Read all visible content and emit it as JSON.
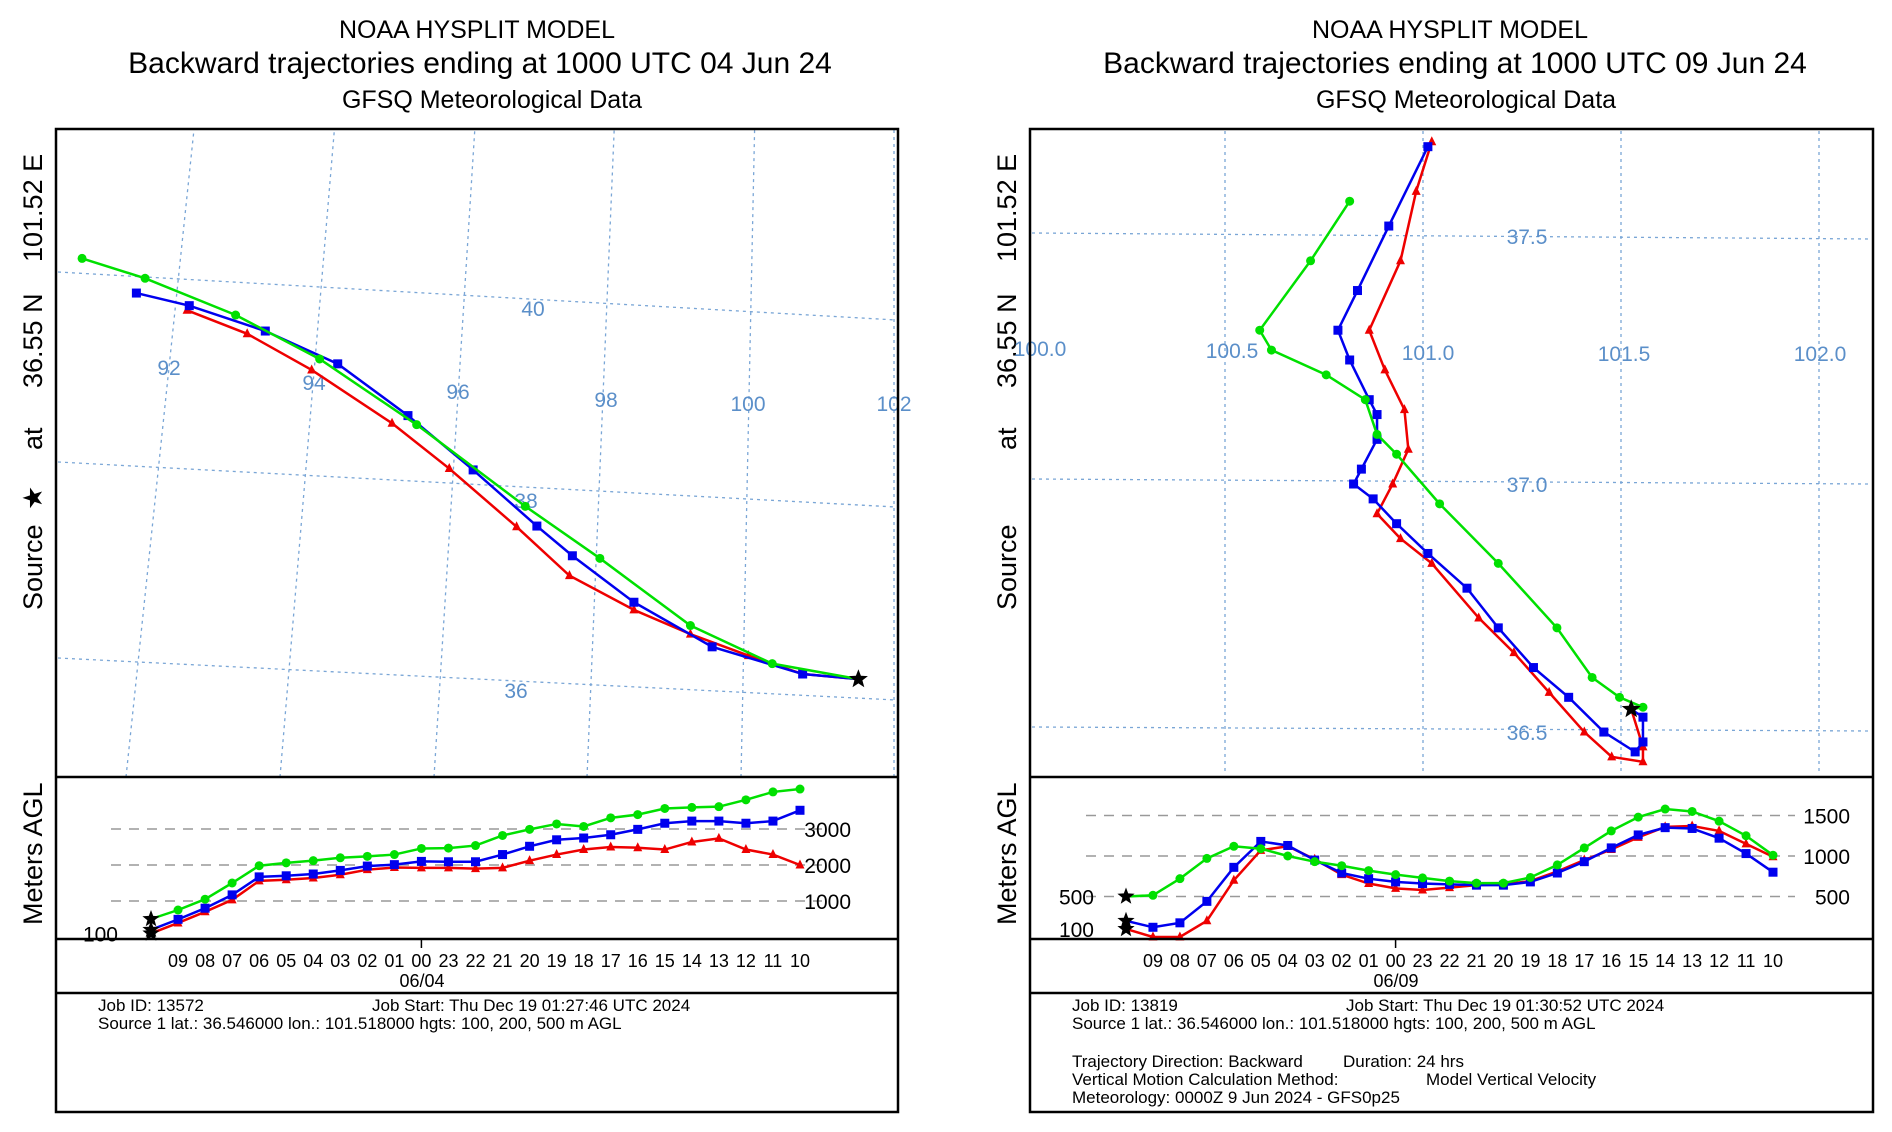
{
  "colors": {
    "green": "#00e000",
    "blue": "#0000ee",
    "red": "#ee0000",
    "grid": "#7aa6d6"
  },
  "side_label": {
    "source": "Source",
    "star": "★",
    "at": "at",
    "lat": "36.55 N",
    "lon": "101.52 E",
    "meters": "Meters AGL"
  },
  "chart_data": [
    {
      "type": "line",
      "title": "NOAA HYSPLIT MODEL",
      "subtitle": "Backward trajectories ending at 1000 UTC 04 Jun 24",
      "subtitle2": "GFSQ Meteorological Data",
      "map": {
        "lon_labels": [
          "92",
          "94",
          "96",
          "98",
          "100",
          "102"
        ],
        "lat_labels": [
          "40",
          "38",
          "36"
        ],
        "source": {
          "lon": 101.52,
          "lat": 36.55
        },
        "series": [
          {
            "name": "500 m",
            "color": "green",
            "marker": "circle",
            "points": [
              [
                90.8,
                40.49
              ],
              [
                91.67,
                40.32
              ],
              [
                92.92,
                39.99
              ],
              [
                94.08,
                39.58
              ],
              [
                95.42,
                38.95
              ],
              [
                96.92,
                38.16
              ],
              [
                97.95,
                37.66
              ],
              [
                99.2,
                37.01
              ],
              [
                100.33,
                36.66
              ],
              [
                101.52,
                36.55
              ]
            ]
          },
          {
            "name": "200 m",
            "color": "blue",
            "marker": "square",
            "points": [
              [
                91.55,
                40.16
              ],
              [
                92.28,
                40.06
              ],
              [
                93.33,
                39.84
              ],
              [
                94.33,
                39.54
              ],
              [
                95.3,
                39.04
              ],
              [
                96.2,
                38.51
              ],
              [
                97.08,
                37.96
              ],
              [
                97.57,
                37.67
              ],
              [
                98.42,
                37.22
              ],
              [
                99.5,
                36.8
              ],
              [
                100.75,
                36.57
              ],
              [
                101.52,
                36.55
              ]
            ]
          },
          {
            "name": "100 m",
            "color": "red",
            "marker": "triangle",
            "points": [
              [
                92.25,
                40.01
              ],
              [
                93.08,
                39.8
              ],
              [
                93.97,
                39.46
              ],
              [
                95.08,
                38.95
              ],
              [
                95.87,
                38.51
              ],
              [
                96.8,
                37.94
              ],
              [
                97.53,
                37.46
              ],
              [
                98.42,
                37.14
              ],
              [
                99.2,
                36.92
              ],
              [
                100.0,
                36.73
              ],
              [
                100.75,
                36.57
              ],
              [
                101.52,
                36.55
              ]
            ]
          }
        ]
      },
      "height": {
        "ylabel": "Meters AGL",
        "right_ticks": [
          1000,
          2000,
          3000
        ],
        "left_ticks": [
          100
        ],
        "times": [
          "10",
          "09",
          "08",
          "07",
          "06",
          "05",
          "04",
          "03",
          "02",
          "01",
          "00",
          "23",
          "22",
          "21",
          "20",
          "19",
          "18",
          "17",
          "16",
          "15",
          "14",
          "13",
          "12",
          "11",
          "10"
        ],
        "date_label": "06/04",
        "series": [
          {
            "name": "500 m",
            "color": "green",
            "marker": "circle",
            "values": [
              500,
              750,
              1050,
              1500,
              1980,
              2060,
              2120,
              2200,
              2240,
              2290,
              2460,
              2470,
              2540,
              2820,
              2990,
              3140,
              3070,
              3310,
              3400,
              3570,
              3600,
              3620,
              3810,
              4030,
              4110
            ]
          },
          {
            "name": "200 m",
            "color": "blue",
            "marker": "square",
            "values": [
              200,
              490,
              800,
              1170,
              1670,
              1700,
              1750,
              1850,
              1970,
              2010,
              2100,
              2090,
              2090,
              2290,
              2520,
              2700,
              2750,
              2840,
              2990,
              3160,
              3220,
              3220,
              3160,
              3220,
              3520
            ]
          },
          {
            "name": "100 m",
            "color": "red",
            "marker": "triangle",
            "values": [
              100,
              390,
              700,
              1030,
              1560,
              1590,
              1640,
              1730,
              1870,
              1930,
              1920,
              1920,
              1900,
              1920,
              2120,
              2290,
              2430,
              2500,
              2480,
              2430,
              2640,
              2740,
              2430,
              2290,
              2000
            ]
          }
        ]
      },
      "info": {
        "job_id": "Job ID: 13572",
        "job_start": "Job Start: Thu Dec 19 01:27:46 UTC 2024",
        "source_line": "Source 1 lat.: 36.546000  lon.: 101.518000  hgts: 100, 200, 500 m AGL"
      }
    },
    {
      "type": "line",
      "title": "NOAA HYSPLIT MODEL",
      "subtitle": "Backward trajectories ending at 1000 UTC 09 Jun 24",
      "subtitle2": "GFSQ Meteorological Data",
      "map": {
        "lon_labels": [
          "100.0",
          "100.5",
          "101.0",
          "101.5",
          "102.0"
        ],
        "lat_labels": [
          "37.5",
          "37.0",
          "36.5"
        ],
        "source": {
          "lon": 101.52,
          "lat": 36.546
        },
        "series": [
          {
            "name": "500 m",
            "color": "green",
            "marker": "circle",
            "points": [
              [
                100.8,
                37.57
              ],
              [
                100.7,
                37.45
              ],
              [
                100.57,
                37.31
              ],
              [
                100.6,
                37.27
              ],
              [
                100.74,
                37.22
              ],
              [
                100.84,
                37.17
              ],
              [
                100.87,
                37.1
              ],
              [
                100.92,
                37.06
              ],
              [
                101.03,
                36.96
              ],
              [
                101.18,
                36.84
              ],
              [
                101.33,
                36.71
              ],
              [
                101.42,
                36.61
              ],
              [
                101.49,
                36.57
              ],
              [
                101.55,
                36.55
              ],
              [
                101.52,
                36.546
              ]
            ]
          },
          {
            "name": "200 m",
            "color": "blue",
            "marker": "square",
            "points": [
              [
                101.0,
                37.68
              ],
              [
                100.9,
                37.52
              ],
              [
                100.82,
                37.39
              ],
              [
                100.77,
                37.31
              ],
              [
                100.8,
                37.25
              ],
              [
                100.85,
                37.17
              ],
              [
                100.87,
                37.14
              ],
              [
                100.87,
                37.09
              ],
              [
                100.83,
                37.03
              ],
              [
                100.81,
                37.0
              ],
              [
                100.86,
                36.97
              ],
              [
                100.92,
                36.92
              ],
              [
                101.0,
                36.86
              ],
              [
                101.1,
                36.79
              ],
              [
                101.18,
                36.71
              ],
              [
                101.27,
                36.63
              ],
              [
                101.36,
                36.57
              ],
              [
                101.45,
                36.5
              ],
              [
                101.53,
                36.46
              ],
              [
                101.55,
                36.48
              ],
              [
                101.55,
                36.53
              ],
              [
                101.52,
                36.546
              ]
            ]
          },
          {
            "name": "100 m",
            "color": "red",
            "marker": "triangle",
            "points": [
              [
                101.01,
                37.69
              ],
              [
                100.97,
                37.59
              ],
              [
                100.93,
                37.45
              ],
              [
                100.85,
                37.31
              ],
              [
                100.89,
                37.23
              ],
              [
                100.94,
                37.15
              ],
              [
                100.95,
                37.07
              ],
              [
                100.91,
                37.0
              ],
              [
                100.87,
                36.94
              ],
              [
                100.93,
                36.89
              ],
              [
                101.01,
                36.84
              ],
              [
                101.13,
                36.73
              ],
              [
                101.22,
                36.66
              ],
              [
                101.31,
                36.58
              ],
              [
                101.4,
                36.5
              ],
              [
                101.47,
                36.45
              ],
              [
                101.55,
                36.44
              ],
              [
                101.55,
                36.47
              ],
              [
                101.52,
                36.546
              ]
            ]
          }
        ]
      },
      "height": {
        "ylabel": "Meters AGL",
        "right_ticks": [
          500,
          1000,
          1500
        ],
        "left_ticks": [
          100,
          500
        ],
        "times": [
          "10",
          "09",
          "08",
          "07",
          "06",
          "05",
          "04",
          "03",
          "02",
          "01",
          "00",
          "23",
          "22",
          "21",
          "20",
          "19",
          "18",
          "17",
          "16",
          "15",
          "14",
          "13",
          "12",
          "11",
          "10"
        ],
        "date_label": "06/09",
        "series": [
          {
            "name": "500 m",
            "color": "green",
            "marker": "circle",
            "values": [
              500,
              515,
              720,
              970,
              1120,
              1090,
              1000,
              930,
              880,
              820,
              770,
              730,
              690,
              665,
              665,
              735,
              890,
              1100,
              1310,
              1480,
              1580,
              1550,
              1430,
              1250,
              1010
            ]
          },
          {
            "name": "200 m",
            "color": "blue",
            "marker": "square",
            "values": [
              200,
              120,
              175,
              440,
              860,
              1180,
              1130,
              950,
              790,
              720,
              680,
              660,
              650,
              640,
              640,
              680,
              790,
              930,
              1100,
              1260,
              1350,
              1340,
              1220,
              1030,
              800
            ]
          },
          {
            "name": "100 m",
            "color": "red",
            "marker": "triangle",
            "values": [
              100,
              0,
              0,
              200,
              700,
              1070,
              1120,
              960,
              770,
              660,
              600,
              580,
              610,
              640,
              650,
              690,
              810,
              950,
              1080,
              1230,
              1360,
              1370,
              1310,
              1150,
              990
            ]
          }
        ]
      },
      "info": {
        "job_id": "Job ID: 13819",
        "job_start": "Job Start: Thu Dec 19 01:30:52 UTC 2024",
        "source_line": "Source 1 lat.: 36.546000  lon.: 101.518000  hgts: 100, 200, 500 m AGL",
        "direction": "Trajectory Direction: Backward",
        "duration": "Duration: 24 hrs",
        "vertical_label": "Vertical Motion Calculation Method:",
        "vertical_value": "Model Vertical Velocity",
        "meteorology": "Meteorology: 0000Z 9 Jun 2024 - GFS0p25"
      }
    }
  ]
}
